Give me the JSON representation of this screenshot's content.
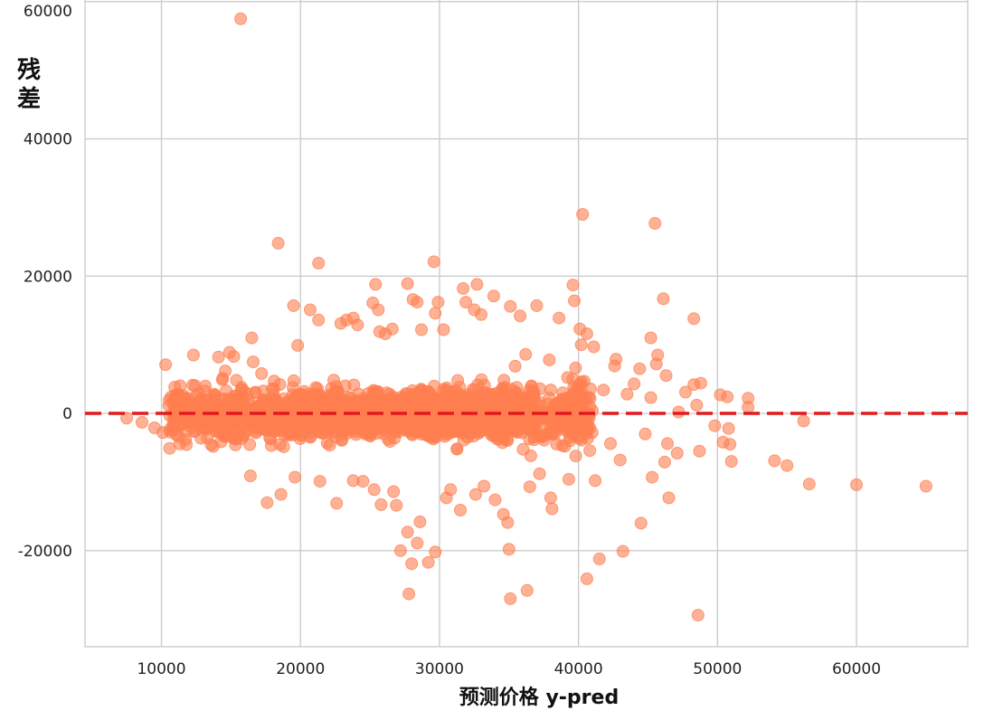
{
  "chart_data": {
    "type": "scatter",
    "title": "",
    "xlabel": "预测价格 y-pred",
    "ylabel_chars": [
      "残",
      "差"
    ],
    "xlim": [
      4500,
      68000
    ],
    "ylim": [
      -34000,
      60500
    ],
    "xticks": [
      10000,
      20000,
      30000,
      40000,
      50000,
      60000
    ],
    "yticks": [
      -20000,
      0,
      20000,
      40000,
      60000
    ],
    "xtick_labels": [
      "10000",
      "20000",
      "30000",
      "40000",
      "50000",
      "60000"
    ],
    "ytick_labels": [
      "-20000",
      "0",
      "20000",
      "40000",
      "60000"
    ],
    "grid": true,
    "reference_line": {
      "y": 0,
      "style": "dashed",
      "color": "#e31a1c"
    },
    "point_color": "#ff7f50",
    "cloud": {
      "description": "dense cluster of residual points",
      "x_range": [
        10500,
        41000
      ],
      "y_range": [
        -8000,
        8000
      ],
      "count": 2400
    },
    "points": [
      [
        15700,
        57500
      ],
      [
        18400,
        24800
      ],
      [
        21300,
        21900
      ],
      [
        29600,
        22100
      ],
      [
        40300,
        29000
      ],
      [
        45500,
        27700
      ],
      [
        10300,
        7100
      ],
      [
        12300,
        8500
      ],
      [
        14100,
        8200
      ],
      [
        14900,
        8900
      ],
      [
        15200,
        8300
      ],
      [
        16500,
        11000
      ],
      [
        16600,
        7500
      ],
      [
        17200,
        5800
      ],
      [
        19500,
        15700
      ],
      [
        19800,
        9900
      ],
      [
        20700,
        15100
      ],
      [
        21300,
        13600
      ],
      [
        22900,
        13100
      ],
      [
        23300,
        13600
      ],
      [
        23800,
        13900
      ],
      [
        24100,
        12900
      ],
      [
        25200,
        16100
      ],
      [
        25400,
        18800
      ],
      [
        25600,
        15100
      ],
      [
        25700,
        11900
      ],
      [
        26100,
        11600
      ],
      [
        26600,
        12300
      ],
      [
        27700,
        18900
      ],
      [
        28100,
        16600
      ],
      [
        28400,
        16200
      ],
      [
        28700,
        12200
      ],
      [
        29900,
        16200
      ],
      [
        29700,
        14600
      ],
      [
        30300,
        12200
      ],
      [
        31700,
        18200
      ],
      [
        31900,
        16200
      ],
      [
        32700,
        18800
      ],
      [
        32500,
        15100
      ],
      [
        33000,
        14400
      ],
      [
        33900,
        17100
      ],
      [
        35100,
        15600
      ],
      [
        35800,
        14200
      ],
      [
        36200,
        8600
      ],
      [
        37000,
        15700
      ],
      [
        37900,
        7800
      ],
      [
        38600,
        13900
      ],
      [
        39600,
        18700
      ],
      [
        39700,
        16400
      ],
      [
        40100,
        12300
      ],
      [
        40200,
        10000
      ],
      [
        40600,
        11600
      ],
      [
        41100,
        9700
      ],
      [
        42700,
        7900
      ],
      [
        44400,
        6500
      ],
      [
        45200,
        11000
      ],
      [
        45600,
        7200
      ],
      [
        45700,
        8500
      ],
      [
        46100,
        16700
      ],
      [
        46300,
        5500
      ],
      [
        48300,
        13800
      ],
      [
        48800,
        4400
      ],
      [
        50200,
        2700
      ],
      [
        50700,
        2400
      ],
      [
        52200,
        2200
      ],
      [
        52200,
        900
      ],
      [
        56200,
        -1100
      ],
      [
        7500,
        -700
      ],
      [
        8600,
        -1300
      ],
      [
        9500,
        -2100
      ],
      [
        10100,
        -2800
      ],
      [
        54100,
        -6900
      ],
      [
        55000,
        -7600
      ],
      [
        56600,
        -10300
      ],
      [
        60000,
        -10400
      ],
      [
        65000,
        -10600
      ],
      [
        51000,
        -7000
      ],
      [
        50900,
        -4500
      ],
      [
        50400,
        -4200
      ],
      [
        48700,
        -5500
      ],
      [
        47100,
        -5800
      ],
      [
        46400,
        -4400
      ],
      [
        46200,
        -7100
      ],
      [
        46500,
        -12300
      ],
      [
        45300,
        -9300
      ],
      [
        44500,
        -16000
      ],
      [
        43200,
        -20100
      ],
      [
        41500,
        -21200
      ],
      [
        40600,
        -24100
      ],
      [
        41200,
        -9800
      ],
      [
        39300,
        -9600
      ],
      [
        38000,
        -12300
      ],
      [
        38100,
        -13900
      ],
      [
        36500,
        -10700
      ],
      [
        36300,
        -25800
      ],
      [
        35100,
        -27000
      ],
      [
        35000,
        -19800
      ],
      [
        34900,
        -15900
      ],
      [
        34600,
        -14700
      ],
      [
        34000,
        -12600
      ],
      [
        33200,
        -10600
      ],
      [
        32600,
        -11800
      ],
      [
        31500,
        -14100
      ],
      [
        30500,
        -12300
      ],
      [
        30800,
        -11100
      ],
      [
        29700,
        -20200
      ],
      [
        29200,
        -21700
      ],
      [
        28600,
        -15800
      ],
      [
        28400,
        -18900
      ],
      [
        27700,
        -17300
      ],
      [
        27800,
        -26300
      ],
      [
        28000,
        -21900
      ],
      [
        27200,
        -20000
      ],
      [
        26900,
        -13400
      ],
      [
        26700,
        -11400
      ],
      [
        25300,
        -11100
      ],
      [
        25800,
        -13300
      ],
      [
        24500,
        -9900
      ],
      [
        23800,
        -9800
      ],
      [
        22600,
        -13100
      ],
      [
        21400,
        -9900
      ],
      [
        19600,
        -9300
      ],
      [
        18600,
        -11800
      ],
      [
        17600,
        -13000
      ],
      [
        16400,
        -9100
      ],
      [
        48600,
        -29400
      ],
      [
        37200,
        -8800
      ],
      [
        39800,
        -6200
      ],
      [
        43000,
        -6800
      ],
      [
        42300,
        -4400
      ],
      [
        44800,
        -3000
      ],
      [
        47700,
        3100
      ],
      [
        48300,
        4200
      ],
      [
        49800,
        -1800
      ],
      [
        50800,
        -2200
      ],
      [
        47200,
        200
      ],
      [
        48500,
        1200
      ],
      [
        43500,
        2800
      ],
      [
        41800,
        3400
      ],
      [
        42600,
        6900
      ],
      [
        44000,
        4300
      ],
      [
        45200,
        2300
      ]
    ]
  }
}
